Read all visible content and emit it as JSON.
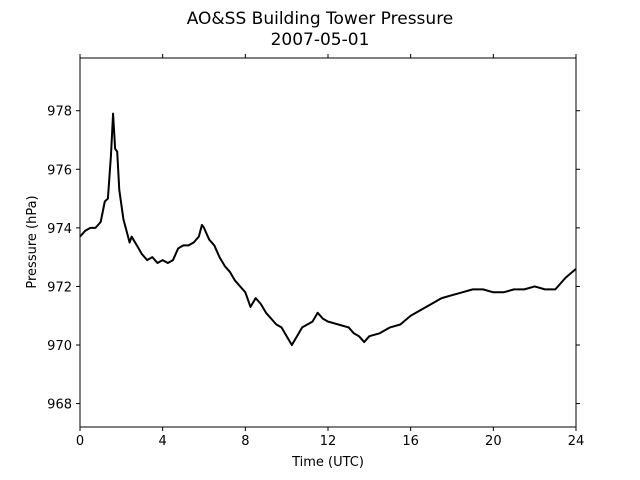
{
  "chart_data": {
    "type": "line",
    "title": "AO&SS Building Tower Pressure",
    "subtitle": "2007-05-01",
    "x_label": "Time (UTC)",
    "y_label": "Pressure (hPa)",
    "x": [
      0,
      0.25,
      0.5,
      0.75,
      1.0,
      1.2,
      1.35,
      1.5,
      1.6,
      1.7,
      1.8,
      1.9,
      2.0,
      2.1,
      2.25,
      2.4,
      2.5,
      2.75,
      3.0,
      3.25,
      3.5,
      3.75,
      4.0,
      4.25,
      4.5,
      4.75,
      5.0,
      5.25,
      5.5,
      5.75,
      5.9,
      6.0,
      6.25,
      6.5,
      6.75,
      7.0,
      7.25,
      7.5,
      7.75,
      8.0,
      8.25,
      8.5,
      8.75,
      9.0,
      9.25,
      9.5,
      9.75,
      10.0,
      10.25,
      10.5,
      10.75,
      11.0,
      11.25,
      11.5,
      11.75,
      12.0,
      12.5,
      13.0,
      13.25,
      13.5,
      13.75,
      14.0,
      14.5,
      15.0,
      15.5,
      16.0,
      16.5,
      17.0,
      17.5,
      18.0,
      18.5,
      19.0,
      19.5,
      20.0,
      20.5,
      21.0,
      21.5,
      22.0,
      22.5,
      23.0,
      23.5,
      24.0
    ],
    "series": [
      {
        "name": "Pressure",
        "color": "#000000",
        "values": [
          973.7,
          973.9,
          974.0,
          974.0,
          974.2,
          974.9,
          975.0,
          976.5,
          977.9,
          976.7,
          976.6,
          975.3,
          974.8,
          974.3,
          973.9,
          973.5,
          973.7,
          973.4,
          973.1,
          972.9,
          973.0,
          972.8,
          972.9,
          972.8,
          972.9,
          973.3,
          973.4,
          973.4,
          973.5,
          973.7,
          974.1,
          974.0,
          973.6,
          973.4,
          973.0,
          972.7,
          972.5,
          972.2,
          972.0,
          971.8,
          971.3,
          971.6,
          971.4,
          971.1,
          970.9,
          970.7,
          970.6,
          970.3,
          970.0,
          970.3,
          970.6,
          970.7,
          970.8,
          971.1,
          970.9,
          970.8,
          970.7,
          970.6,
          970.4,
          970.3,
          970.1,
          970.3,
          970.4,
          970.6,
          970.7,
          971.0,
          971.2,
          971.4,
          971.6,
          971.7,
          971.8,
          971.9,
          971.9,
          971.8,
          971.8,
          971.9,
          971.9,
          972.0,
          971.9,
          971.9,
          972.3,
          972.6
        ]
      }
    ],
    "xlim": [
      0,
      24
    ],
    "xticks": [
      0,
      4,
      8,
      12,
      16,
      20,
      24
    ],
    "ylim": [
      967.2,
      979.8
    ],
    "yticks": [
      968,
      970,
      972,
      974,
      976,
      978
    ],
    "grid": false
  }
}
